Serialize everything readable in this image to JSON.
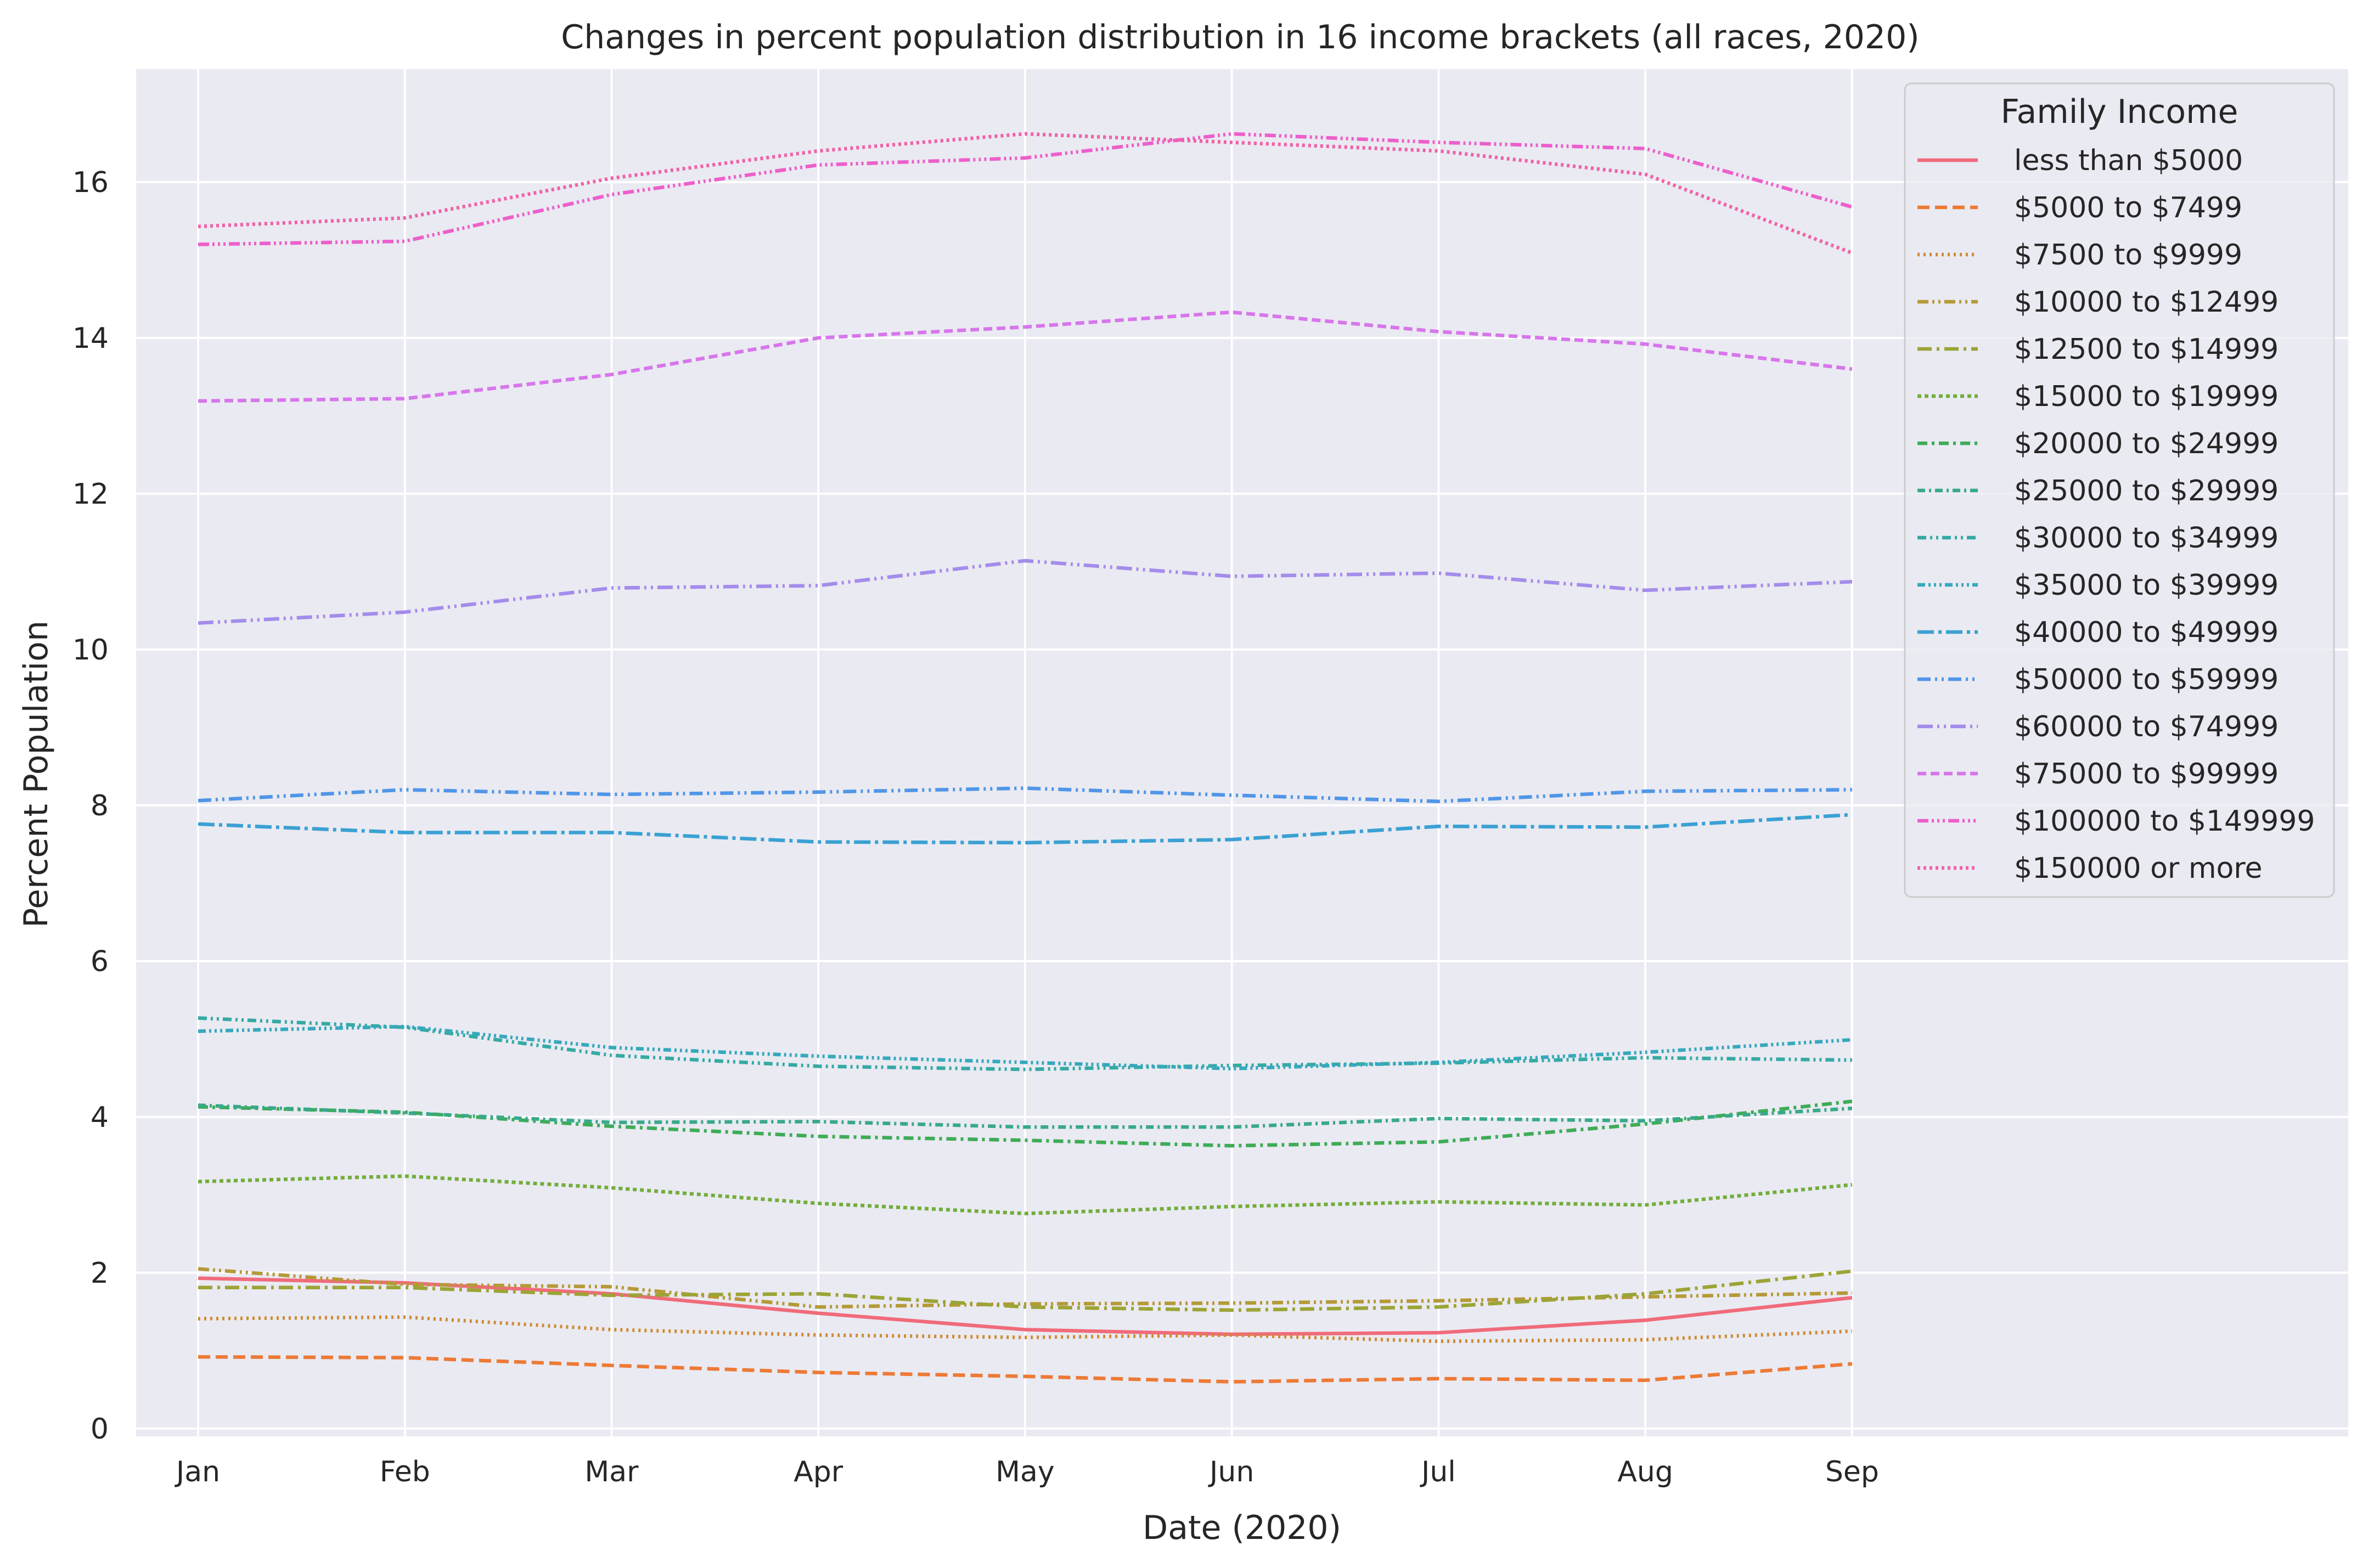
{
  "chart_data": {
    "type": "line",
    "title": "Changes in percent population distribution in 16 income brackets (all races, 2020)",
    "xlabel": "Date (2020)",
    "ylabel": "Percent Population",
    "categories": [
      "Jan",
      "Feb",
      "Mar",
      "Apr",
      "May",
      "Jun",
      "Jul",
      "Aug",
      "Sep"
    ],
    "xlim": [
      -0.3,
      10.4
    ],
    "ylim": [
      -0.1,
      17.45
    ],
    "yticks": [
      0,
      2,
      4,
      6,
      8,
      10,
      12,
      14,
      16
    ],
    "grid": true,
    "legend": {
      "title": "Family Income",
      "placement": "top-right"
    },
    "series": [
      {
        "name": "less than $5000",
        "color": "#f06b7a",
        "dash": "solid",
        "values": [
          1.93,
          1.87,
          1.73,
          1.48,
          1.27,
          1.21,
          1.23,
          1.39,
          1.68
        ]
      },
      {
        "name": "$5000 to $7499",
        "color": "#ed7a36",
        "dash": "dashed",
        "values": [
          0.92,
          0.91,
          0.81,
          0.72,
          0.67,
          0.6,
          0.64,
          0.62,
          0.83
        ]
      },
      {
        "name": "$7500 to $9999",
        "color": "#ce8c33",
        "dash": "dotted",
        "values": [
          1.41,
          1.43,
          1.27,
          1.2,
          1.17,
          1.2,
          1.12,
          1.14,
          1.25
        ]
      },
      {
        "name": "$10000 to $12499",
        "color": "#b59a37",
        "dash": "dashdotdot",
        "values": [
          2.05,
          1.85,
          1.82,
          1.56,
          1.6,
          1.61,
          1.64,
          1.69,
          1.74
        ]
      },
      {
        "name": "$12500 to $14999",
        "color": "#9ca436",
        "dash": "longdashdot",
        "values": [
          1.81,
          1.81,
          1.71,
          1.73,
          1.56,
          1.52,
          1.56,
          1.73,
          2.02
        ]
      },
      {
        "name": "$15000 to $19999",
        "color": "#72ae3a",
        "dash": "dotdot",
        "values": [
          3.17,
          3.24,
          3.09,
          2.89,
          2.76,
          2.85,
          2.91,
          2.87,
          3.13
        ]
      },
      {
        "name": "$20000 to $24999",
        "color": "#3eac57",
        "dash": "dashdot",
        "values": [
          4.13,
          4.06,
          3.88,
          3.75,
          3.7,
          3.63,
          3.68,
          3.91,
          4.2
        ]
      },
      {
        "name": "$25000 to $29999",
        "color": "#39a98a",
        "dash": "dashdotted",
        "values": [
          4.15,
          4.05,
          3.93,
          3.94,
          3.87,
          3.87,
          3.98,
          3.95,
          4.11
        ]
      },
      {
        "name": "$30000 to $34999",
        "color": "#35aaa4",
        "dash": "dashdotdot2",
        "values": [
          5.27,
          5.15,
          4.79,
          4.65,
          4.61,
          4.66,
          4.69,
          4.76,
          4.73
        ]
      },
      {
        "name": "$35000 to $39999",
        "color": "#36a9bd",
        "dash": "dashdotdotdot",
        "values": [
          5.1,
          5.16,
          4.89,
          4.78,
          4.7,
          4.62,
          4.7,
          4.83,
          4.99
        ]
      },
      {
        "name": "$40000 to $49999",
        "color": "#3aa1d3",
        "dash": "longdashdotshort",
        "values": [
          7.76,
          7.65,
          7.65,
          7.53,
          7.52,
          7.56,
          7.73,
          7.72,
          7.88
        ]
      },
      {
        "name": "$50000 to $59999",
        "color": "#5096e8",
        "dash": "dashdotdotlong",
        "values": [
          8.06,
          8.2,
          8.14,
          8.17,
          8.22,
          8.13,
          8.05,
          8.18,
          8.2
        ]
      },
      {
        "name": "$60000 to $74999",
        "color": "#a48ceb",
        "dash": "longdashdotdot",
        "values": [
          10.34,
          10.48,
          10.79,
          10.82,
          11.14,
          10.94,
          10.98,
          10.76,
          10.87
        ]
      },
      {
        "name": "$75000 to $99999",
        "color": "#d776eb",
        "dash": "mediumdash",
        "values": [
          13.19,
          13.22,
          13.53,
          14.0,
          14.14,
          14.33,
          14.08,
          13.92,
          13.6
        ]
      },
      {
        "name": "$100000 to $149999",
        "color": "#ed5fcb",
        "dash": "dashdotdotdot2",
        "values": [
          15.2,
          15.24,
          15.84,
          16.22,
          16.31,
          16.62,
          16.51,
          16.43,
          15.68
        ]
      },
      {
        "name": "$150000 or more",
        "color": "#f062a6",
        "dash": "fine",
        "values": [
          15.43,
          15.54,
          16.05,
          16.4,
          16.62,
          16.51,
          16.4,
          16.1,
          15.09
        ]
      }
    ]
  }
}
